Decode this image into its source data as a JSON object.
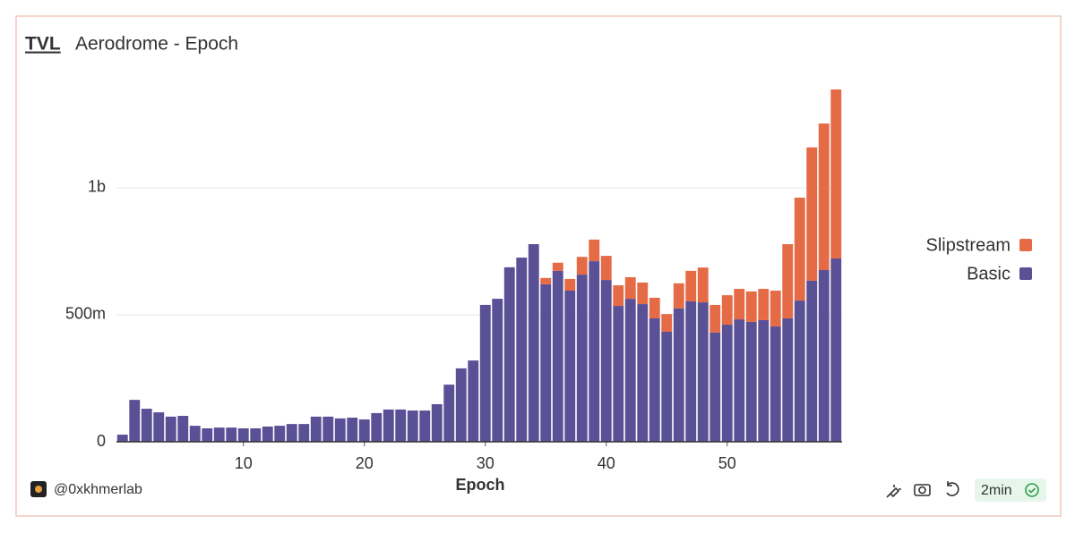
{
  "chart_data": {
    "type": "stacked_bar",
    "title": "TVL",
    "subtitle": "Aerodrome - Epoch",
    "xlabel": "Epoch",
    "x": [
      0,
      1,
      2,
      3,
      4,
      5,
      6,
      7,
      8,
      9,
      10,
      11,
      12,
      13,
      14,
      15,
      16,
      17,
      18,
      19,
      20,
      21,
      22,
      23,
      24,
      25,
      26,
      27,
      28,
      29,
      30,
      31,
      32,
      33,
      34,
      35,
      36,
      37,
      38,
      39,
      40,
      41,
      42,
      43,
      44,
      45,
      46,
      47,
      48,
      49,
      50,
      51,
      52,
      53,
      54,
      55,
      56,
      57,
      58,
      59
    ],
    "xlim": [
      -0.5,
      59.5
    ],
    "xticks": [
      10,
      20,
      30,
      40,
      50
    ],
    "ylim": [
      0,
      1440000000
    ],
    "yticks": [
      0,
      {
        "value": 500000000,
        "label": "500m"
      },
      {
        "value": 1000000000,
        "label": "1b"
      }
    ],
    "grid": true,
    "legend": "right",
    "series": [
      {
        "name": "Basic",
        "color": "#5a5096",
        "values": [
          28000000,
          165000000,
          130000000,
          116000000,
          99000000,
          102000000,
          63000000,
          53000000,
          56000000,
          56000000,
          53000000,
          53000000,
          60000000,
          63000000,
          70000000,
          70000000,
          99000000,
          99000000,
          92000000,
          95000000,
          88000000,
          113000000,
          127000000,
          127000000,
          123000000,
          123000000,
          148000000,
          225000000,
          289000000,
          320000000,
          539000000,
          563000000,
          687000000,
          725000000,
          778000000,
          620000000,
          673000000,
          595000000,
          658000000,
          711000000,
          637000000,
          535000000,
          563000000,
          542000000,
          486000000,
          433000000,
          525000000,
          553000000,
          549000000,
          430000000,
          461000000,
          482000000,
          472000000,
          479000000,
          454000000,
          486000000,
          556000000,
          634000000,
          676000000,
          722000000
        ]
      },
      {
        "name": "Slipstream",
        "color": "#e56b47",
        "values": [
          0,
          0,
          0,
          0,
          0,
          0,
          0,
          0,
          0,
          0,
          0,
          0,
          0,
          0,
          0,
          0,
          0,
          0,
          0,
          0,
          0,
          0,
          0,
          0,
          0,
          0,
          0,
          0,
          0,
          0,
          0,
          0,
          0,
          0,
          0,
          25000000,
          32000000,
          46000000,
          70000000,
          85000000,
          95000000,
          81000000,
          85000000,
          85000000,
          81000000,
          70000000,
          99000000,
          120000000,
          137000000,
          109000000,
          116000000,
          120000000,
          120000000,
          123000000,
          141000000,
          292000000,
          405000000,
          525000000,
          577000000,
          665000000
        ]
      }
    ]
  },
  "footer": {
    "author": "@0xkhmerlab",
    "refresh": "2min"
  }
}
